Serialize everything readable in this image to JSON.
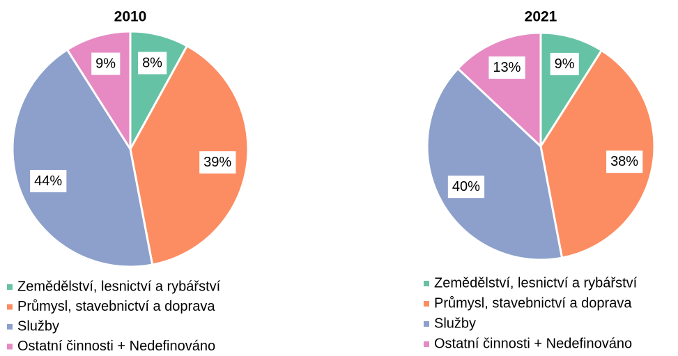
{
  "chart_data": [
    {
      "type": "pie",
      "title": "2010",
      "categories": [
        "Zemědělství, lesnictví a rybářství",
        "Průmysl, stavebnictví a doprava",
        "Služby",
        "Ostatní činnosti + Nedefinováno"
      ],
      "values": [
        8,
        39,
        44,
        9
      ],
      "value_labels": [
        "8%",
        "39%",
        "44%",
        "9%"
      ],
      "colors": [
        "#66c2a5",
        "#fc8d62",
        "#8da0cb",
        "#e78ac3"
      ]
    },
    {
      "type": "pie",
      "title": "2021",
      "categories": [
        "Zemědělství, lesnictví a rybářství",
        "Průmysl, stavebnictví a doprava",
        "Služby",
        "Ostatní činnosti + Nedefinováno"
      ],
      "values": [
        9,
        38,
        40,
        13
      ],
      "value_labels": [
        "9%",
        "38%",
        "40%",
        "13%"
      ],
      "colors": [
        "#66c2a5",
        "#fc8d62",
        "#8da0cb",
        "#e78ac3"
      ]
    }
  ]
}
